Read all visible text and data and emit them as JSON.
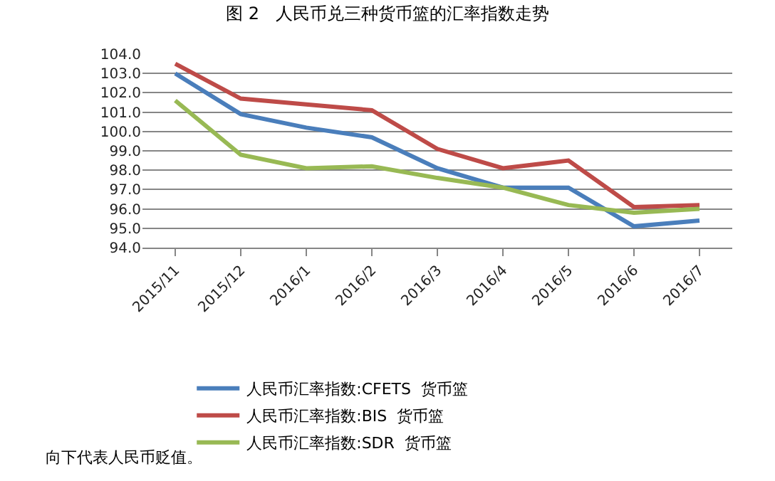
{
  "chart_data": {
    "type": "line",
    "title": "图 2   人民币兑三种货币篮的汇率指数走势",
    "categories": [
      "2015/11",
      "2015/12",
      "2016/1",
      "2016/2",
      "2016/3",
      "2016/4",
      "2016/5",
      "2016/6",
      "2016/7"
    ],
    "series": [
      {
        "name": "人民币汇率指数:CFETS  货币篮",
        "color": "#4a7ebb",
        "values": [
          103.0,
          100.9,
          100.2,
          99.7,
          98.1,
          97.1,
          97.1,
          95.1,
          95.4
        ]
      },
      {
        "name": "人民币汇率指数:BIS  货币篮",
        "color": "#be4b48",
        "values": [
          103.5,
          101.7,
          101.4,
          101.1,
          99.1,
          98.1,
          98.5,
          96.1,
          96.2
        ]
      },
      {
        "name": "人民币汇率指数:SDR  货币篮",
        "color": "#98b954",
        "values": [
          101.6,
          98.8,
          98.1,
          98.2,
          97.6,
          97.1,
          96.2,
          95.8,
          96.0
        ]
      }
    ],
    "ylim": [
      94,
      104
    ],
    "yticks": [
      {
        "value": 94,
        "label": "94.0"
      },
      {
        "value": 95,
        "label": "95.0"
      },
      {
        "value": 96,
        "label": "96.0"
      },
      {
        "value": 97,
        "label": "97.0"
      },
      {
        "value": 98,
        "label": "98.0"
      },
      {
        "value": 99,
        "label": "99.0"
      },
      {
        "value": 100,
        "label": "100.0"
      },
      {
        "value": 101,
        "label": "101.0"
      },
      {
        "value": 102,
        "label": "102.0"
      },
      {
        "value": 103,
        "label": "103.0"
      },
      {
        "value": 104,
        "label": "104.0"
      }
    ],
    "grid": "y",
    "legend": "bottom",
    "marker": "none",
    "line_style": "solid",
    "annotations": [
      "向下代表人民币贬值。"
    ]
  }
}
